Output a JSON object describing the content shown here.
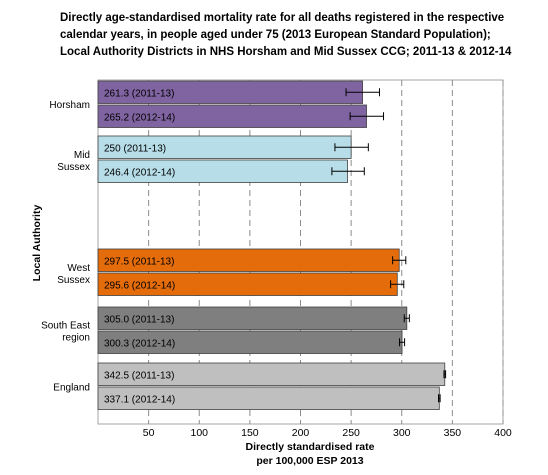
{
  "chart_data": {
    "type": "bar",
    "orientation": "horizontal",
    "title_lines": [
      "Directly age-standardised mortality rate for all deaths registered in the respective",
      "calendar years, in people aged under 75 (2013 European Standard Population);",
      "Local Authority Districts in NHS Horsham and Mid Sussex CCG; 2011-13 & 2012-14"
    ],
    "xlabel_lines": [
      "Directly standardised rate",
      "per 100,000 ESP 2013"
    ],
    "ylabel": "Local Authority",
    "xlim": [
      0,
      400
    ],
    "xticks": [
      50,
      100,
      150,
      200,
      250,
      300,
      350,
      400
    ],
    "grid": "vertical dashed",
    "groups": [
      {
        "name": "Horsham",
        "color": "#8064A2",
        "bars": [
          {
            "value": 261.3,
            "lower": 245,
            "upper": 278,
            "label": "261.3 (2011-13)"
          },
          {
            "value": 265.2,
            "lower": 249,
            "upper": 282,
            "label": "265.2 (2012-14)"
          }
        ]
      },
      {
        "name": "Mid Sussex",
        "color": "#B7DEE8",
        "bars": [
          {
            "value": 250,
            "lower": 234,
            "upper": 267,
            "label": "250 (2011-13)"
          },
          {
            "value": 246.4,
            "lower": 231,
            "upper": 263,
            "label": "246.4 (2012-14)"
          }
        ]
      },
      {
        "name": "",
        "color": "#ffffff",
        "bars": []
      },
      {
        "name": "West Sussex",
        "color": "#E46C0A",
        "bars": [
          {
            "value": 297.5,
            "lower": 291,
            "upper": 304,
            "label": "297.5 (2011-13)"
          },
          {
            "value": 295.6,
            "lower": 289,
            "upper": 302,
            "label": "295.6 (2012-14)"
          }
        ]
      },
      {
        "name": "South East region",
        "color": "#7F7F7F",
        "bars": [
          {
            "value": 305.0,
            "lower": 302.5,
            "upper": 307.5,
            "label": "305.0 (2011-13)"
          },
          {
            "value": 300.3,
            "lower": 297.8,
            "upper": 302.8,
            "label": "300.3 (2012-14)"
          }
        ]
      },
      {
        "name": "England",
        "color": "#BFBFBF",
        "bars": [
          {
            "value": 342.5,
            "lower": 341.7,
            "upper": 343.3,
            "label": "342.5 (2011-13)"
          },
          {
            "value": 337.1,
            "lower": 336.3,
            "upper": 337.9,
            "label": "337.1 (2012-14)"
          }
        ]
      }
    ]
  }
}
